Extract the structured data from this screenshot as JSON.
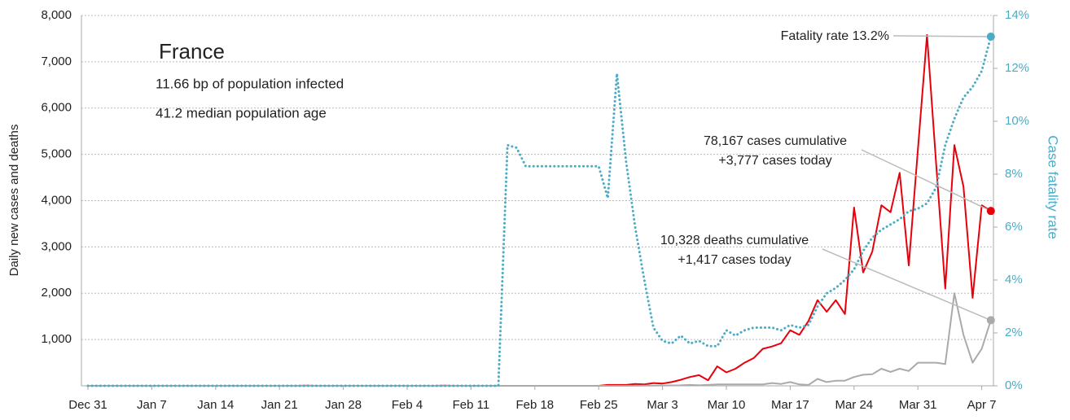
{
  "chart_data": {
    "type": "line",
    "title": "France",
    "subtitle_lines": [
      "11.66 bp of population infected",
      "41.2 median population age"
    ],
    "ylabel": "Daily new cases and deaths",
    "y2label": "Case fatality rate",
    "categories": [
      "Dec 31",
      null,
      null,
      null,
      null,
      null,
      null,
      "Jan 7",
      null,
      null,
      null,
      null,
      null,
      null,
      "Jan 14",
      null,
      null,
      null,
      null,
      null,
      null,
      "Jan 21",
      null,
      null,
      null,
      null,
      null,
      null,
      "Jan 28",
      null,
      null,
      null,
      null,
      null,
      null,
      "Feb 4",
      null,
      null,
      null,
      null,
      null,
      null,
      "Feb 11",
      null,
      null,
      null,
      null,
      null,
      null,
      "Feb 18",
      null,
      null,
      null,
      null,
      null,
      null,
      "Feb 25",
      null,
      null,
      null,
      null,
      null,
      null,
      "Mar 3",
      null,
      null,
      null,
      null,
      null,
      null,
      "Mar 10",
      null,
      null,
      null,
      null,
      null,
      null,
      "Mar 17",
      null,
      null,
      null,
      null,
      null,
      null,
      "Mar 24",
      null,
      null,
      null,
      null,
      null,
      null,
      "Mar 31",
      null,
      null,
      null,
      null,
      null,
      null,
      "Apr 7",
      null
    ],
    "ylim": [
      0,
      8000
    ],
    "yticks": [
      {
        "value": 1000,
        "label": "1,000"
      },
      {
        "value": 2000,
        "label": "2,000"
      },
      {
        "value": 3000,
        "label": "3,000"
      },
      {
        "value": 4000,
        "label": "4,000"
      },
      {
        "value": 5000,
        "label": "5,000"
      },
      {
        "value": 6000,
        "label": "6,000"
      },
      {
        "value": 7000,
        "label": "7,000"
      },
      {
        "value": 8000,
        "label": "8,000"
      }
    ],
    "y2lim": [
      0,
      14
    ],
    "y2ticks": [
      {
        "value": 0,
        "label": "0%"
      },
      {
        "value": 2,
        "label": "2%"
      },
      {
        "value": 4,
        "label": "4%"
      },
      {
        "value": 6,
        "label": "6%"
      },
      {
        "value": 8,
        "label": "8%"
      },
      {
        "value": 10,
        "label": "10%"
      },
      {
        "value": 12,
        "label": "12%"
      },
      {
        "value": 14,
        "label": "14%"
      }
    ],
    "grid": true,
    "series": [
      {
        "color": "#e8000b",
        "line_style": "solid",
        "axis": "y",
        "values": [
          0,
          0,
          0,
          0,
          0,
          0,
          0,
          0,
          0,
          0,
          0,
          0,
          0,
          0,
          0,
          0,
          0,
          0,
          0,
          0,
          0,
          0,
          0,
          0,
          3,
          0,
          0,
          0,
          0,
          0,
          0,
          0,
          0,
          0,
          0,
          0,
          0,
          0,
          0,
          6,
          0,
          0,
          0,
          0,
          0,
          0,
          0,
          0,
          0,
          0,
          0,
          0,
          0,
          0,
          0,
          0,
          0,
          20,
          20,
          20,
          40,
          30,
          60,
          50,
          80,
          130,
          190,
          230,
          120,
          420,
          290,
          370,
          500,
          600,
          800,
          850,
          920,
          1200,
          1100,
          1400,
          1850,
          1600,
          1850,
          1550,
          3850,
          2450,
          2900,
          3900,
          3750,
          4600,
          2600,
          5100,
          7578,
          4800,
          2100,
          5200,
          4300,
          1900,
          3900,
          3777
        ]
      },
      {
        "color": "#aaaaaa",
        "line_style": "solid",
        "axis": "y",
        "values": [
          0,
          0,
          0,
          0,
          0,
          0,
          0,
          0,
          0,
          0,
          0,
          0,
          0,
          0,
          0,
          0,
          0,
          0,
          0,
          0,
          0,
          0,
          0,
          0,
          0,
          0,
          0,
          0,
          0,
          0,
          0,
          0,
          0,
          0,
          0,
          0,
          0,
          0,
          0,
          0,
          0,
          0,
          0,
          0,
          0,
          0,
          0,
          0,
          0,
          0,
          0,
          0,
          0,
          0,
          0,
          0,
          0,
          0,
          0,
          0,
          2,
          4,
          4,
          7,
          9,
          10,
          20,
          10,
          20,
          30,
          30,
          30,
          30,
          30,
          30,
          60,
          40,
          80,
          30,
          20,
          150,
          80,
          110,
          110,
          190,
          240,
          250,
          370,
          300,
          370,
          320,
          500,
          500,
          500,
          470,
          2000,
          1100,
          500,
          800,
          1417
        ]
      },
      {
        "color": "#4bacc6",
        "line_style": "dotted",
        "axis": "y2",
        "values": [
          0,
          0,
          0,
          0,
          0,
          0,
          0,
          0,
          0,
          0,
          0,
          0,
          0,
          0,
          0,
          0,
          0,
          0,
          0,
          0,
          0,
          0,
          0,
          0,
          0,
          0,
          0,
          0,
          0,
          0,
          0,
          0,
          0,
          0,
          0,
          0,
          0,
          0,
          0,
          0,
          0,
          0,
          0,
          0,
          0,
          0,
          9.1,
          9.0,
          8.3,
          8.3,
          8.3,
          8.3,
          8.3,
          8.3,
          8.3,
          8.3,
          8.3,
          7.1,
          11.8,
          8.5,
          6.0,
          4.0,
          2.2,
          1.7,
          1.6,
          1.9,
          1.6,
          1.7,
          1.5,
          1.5,
          2.1,
          1.9,
          2.1,
          2.2,
          2.2,
          2.2,
          2.1,
          2.3,
          2.2,
          2.3,
          3.0,
          3.5,
          3.7,
          4.0,
          4.4,
          5.1,
          5.6,
          5.9,
          6.1,
          6.3,
          6.6,
          6.7,
          6.9,
          7.5,
          9.1,
          10.1,
          10.9,
          11.3,
          11.9,
          13.2
        ]
      }
    ],
    "annotations": [
      {
        "lines": [
          "Fatality rate 13.2%"
        ],
        "series": 2
      },
      {
        "lines": [
          "78,167 cases cumulative",
          "+3,777 cases today"
        ],
        "series": 0
      },
      {
        "lines": [
          "10,328 deaths cumulative",
          "+1,417 cases today"
        ],
        "series": 1
      }
    ]
  }
}
